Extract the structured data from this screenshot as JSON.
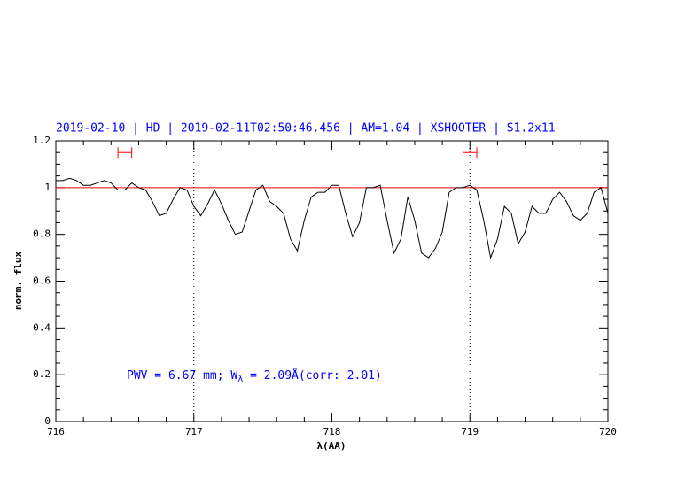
{
  "chart_data": {
    "type": "line",
    "title": "2019-02-10 | HD | 2019-02-11T02:50:46.456 | AM=1.04 | XSHOOTER | S1.2x11",
    "x_label": "λ(AA)",
    "y_label": "norm. flux",
    "annotation": {
      "before": "PWV = 6.67 mm; W",
      "subscript": "λ",
      "after": " = 2.09Å(corr: 2.01)"
    },
    "x": [
      716.0,
      716.05,
      716.1,
      716.15,
      716.2,
      716.25,
      716.3,
      716.35,
      716.4,
      716.45,
      716.5,
      716.55,
      716.6,
      716.65,
      716.7,
      716.75,
      716.8,
      716.85,
      716.9,
      716.95,
      717.0,
      717.05,
      717.1,
      717.15,
      717.2,
      717.25,
      717.3,
      717.35,
      717.4,
      717.45,
      717.5,
      717.55,
      717.6,
      717.65,
      717.7,
      717.75,
      717.8,
      717.85,
      717.9,
      717.95,
      718.0,
      718.05,
      718.1,
      718.15,
      718.2,
      718.25,
      718.3,
      718.35,
      718.4,
      718.45,
      718.5,
      718.55,
      718.6,
      718.65,
      718.7,
      718.75,
      718.8,
      718.85,
      718.9,
      718.95,
      719.0,
      719.05,
      719.1,
      719.15,
      719.2,
      719.25,
      719.3,
      719.35,
      719.4,
      719.45,
      719.5,
      719.55,
      719.6,
      719.65,
      719.7,
      719.75,
      719.8,
      719.85,
      719.9,
      719.95,
      720.0
    ],
    "series": [
      {
        "color": "#000000",
        "values": [
          1.03,
          1.03,
          1.04,
          1.03,
          1.01,
          1.01,
          1.02,
          1.03,
          1.02,
          0.99,
          0.99,
          1.02,
          1.0,
          0.99,
          0.94,
          0.88,
          0.89,
          0.95,
          1.0,
          0.99,
          0.92,
          0.88,
          0.93,
          0.99,
          0.93,
          0.86,
          0.8,
          0.81,
          0.9,
          0.99,
          1.01,
          0.94,
          0.92,
          0.89,
          0.78,
          0.73,
          0.86,
          0.96,
          0.98,
          0.98,
          1.01,
          1.01,
          0.89,
          0.79,
          0.85,
          1.0,
          1.0,
          1.01,
          0.86,
          0.72,
          0.78,
          0.96,
          0.86,
          0.72,
          0.7,
          0.74,
          0.81,
          0.98,
          1.0,
          1.0,
          1.01,
          0.99,
          0.86,
          0.7,
          0.78,
          0.92,
          0.89,
          0.76,
          0.81,
          0.92,
          0.89,
          0.89,
          0.95,
          0.98,
          0.94,
          0.88,
          0.86,
          0.89,
          0.98,
          1.0,
          0.89
        ]
      }
    ],
    "reference_line": {
      "value": 1,
      "color": "#ff0000"
    },
    "vlines": [
      717,
      719
    ],
    "intervals": [
      {
        "x": [
          716.45,
          716.55
        ],
        "y": 1.15,
        "color": "#ff0000"
      },
      {
        "x": [
          718.95,
          719.05
        ],
        "y": 1.15,
        "color": "#ff0000"
      }
    ],
    "xlim": [
      716,
      720
    ],
    "ylim": [
      0,
      1.2
    ],
    "xticks": [
      716,
      717,
      718,
      719,
      720
    ],
    "yticks": [
      0,
      0.2,
      0.4,
      0.6,
      0.8,
      1,
      1.2
    ],
    "text_color": "#0000ff"
  }
}
